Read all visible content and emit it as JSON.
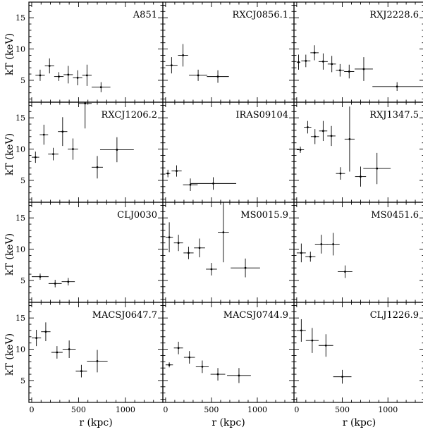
{
  "chart_data": {
    "type": "scatter",
    "layout": "4x3 grid of panels, shared axes",
    "xlabel": "r (kpc)",
    "ylabel": "kT (keV)",
    "xlim": [
      -30,
      1400
    ],
    "ylim": [
      1.5,
      17.5
    ],
    "xticks": [
      0,
      500,
      1000
    ],
    "yticks": [
      5,
      10,
      15
    ],
    "x_minor_step": 100,
    "y_minor_step": 1,
    "panels": [
      {
        "name": "A851",
        "points": [
          {
            "x": 90,
            "y": 5.8,
            "xerr": 50,
            "yerr": 0.9
          },
          {
            "x": 190,
            "y": 7.3,
            "xerr": 50,
            "yerr": 1.2
          },
          {
            "x": 290,
            "y": 5.6,
            "xerr": 50,
            "yerr": 0.7
          },
          {
            "x": 390,
            "y": 5.9,
            "xerr": 50,
            "yerr": 1.4
          },
          {
            "x": 490,
            "y": 5.4,
            "xerr": 50,
            "yerr": 1.2
          },
          {
            "x": 590,
            "y": 5.8,
            "xerr": 50,
            "yerr": 1.7
          },
          {
            "x": 740,
            "y": 3.9,
            "xerr": 100,
            "yerr": 0.8
          }
        ]
      },
      {
        "name": "RXCJ0856.1",
        "points": [
          {
            "x": 65,
            "y": 7.4,
            "xerr": 65,
            "yerr": 1.3
          },
          {
            "x": 190,
            "y": 9.0,
            "xerr": 55,
            "yerr": 1.8
          },
          {
            "x": 355,
            "y": 5.8,
            "xerr": 100,
            "yerr": 0.9
          },
          {
            "x": 570,
            "y": 5.6,
            "xerr": 120,
            "yerr": 1.0
          }
        ]
      },
      {
        "name": "RXJ2228.6",
        "points": [
          {
            "x": 20,
            "y": 7.9,
            "xerr": 20,
            "yerr": 1.2
          },
          {
            "x": 100,
            "y": 8.1,
            "xerr": 50,
            "yerr": 1.0
          },
          {
            "x": 195,
            "y": 9.4,
            "xerr": 45,
            "yerr": 1.2
          },
          {
            "x": 290,
            "y": 8.0,
            "xerr": 50,
            "yerr": 1.3
          },
          {
            "x": 385,
            "y": 7.6,
            "xerr": 45,
            "yerr": 1.3
          },
          {
            "x": 475,
            "y": 6.6,
            "xerr": 45,
            "yerr": 1.0
          },
          {
            "x": 575,
            "y": 6.4,
            "xerr": 55,
            "yerr": 1.1
          },
          {
            "x": 735,
            "y": 6.8,
            "xerr": 100,
            "yerr": 1.9
          },
          {
            "x": 1100,
            "y": 4.0,
            "xerr": 270,
            "yerr": 0.7
          }
        ]
      },
      {
        "name": "RXCJ1206.2",
        "points": [
          {
            "x": 40,
            "y": 8.7,
            "xerr": 40,
            "yerr": 0.9
          },
          {
            "x": 130,
            "y": 12.3,
            "xerr": 45,
            "yerr": 1.6
          },
          {
            "x": 230,
            "y": 9.2,
            "xerr": 55,
            "yerr": 1.0
          },
          {
            "x": 330,
            "y": 12.8,
            "xerr": 50,
            "yerr": 2.3
          },
          {
            "x": 440,
            "y": 10.0,
            "xerr": 55,
            "yerr": 1.7
          },
          {
            "x": 570,
            "y": 17.3,
            "xerr": 70,
            "yerr": 4.0
          },
          {
            "x": 700,
            "y": 7.1,
            "xerr": 60,
            "yerr": 1.8
          },
          {
            "x": 910,
            "y": 9.9,
            "xerr": 180,
            "yerr": 2.0
          }
        ]
      },
      {
        "name": "IRAS09104",
        "points": [
          {
            "x": 25,
            "y": 6.1,
            "xerr": 25,
            "yerr": 0.6
          },
          {
            "x": 120,
            "y": 6.5,
            "xerr": 55,
            "yerr": 0.9
          },
          {
            "x": 270,
            "y": 4.3,
            "xerr": 80,
            "yerr": 1.0
          },
          {
            "x": 520,
            "y": 4.5,
            "xerr": 250,
            "yerr": 1.0
          }
        ]
      },
      {
        "name": "RXJ1347.5",
        "points": [
          {
            "x": 40,
            "y": 9.9,
            "xerr": 40,
            "yerr": 0.5
          },
          {
            "x": 120,
            "y": 13.5,
            "xerr": 40,
            "yerr": 1.0
          },
          {
            "x": 200,
            "y": 12.0,
            "xerr": 45,
            "yerr": 1.2
          },
          {
            "x": 290,
            "y": 12.9,
            "xerr": 45,
            "yerr": 1.6
          },
          {
            "x": 380,
            "y": 12.1,
            "xerr": 45,
            "yerr": 1.6
          },
          {
            "x": 480,
            "y": 6.1,
            "xerr": 50,
            "yerr": 1.0
          },
          {
            "x": 580,
            "y": 11.6,
            "xerr": 55,
            "yerr": 5.2
          },
          {
            "x": 700,
            "y": 5.6,
            "xerr": 60,
            "yerr": 1.6
          },
          {
            "x": 880,
            "y": 6.9,
            "xerr": 150,
            "yerr": 2.5
          }
        ]
      },
      {
        "name": "CLJ0030",
        "points": [
          {
            "x": 90,
            "y": 5.6,
            "xerr": 90,
            "yerr": 0.5
          },
          {
            "x": 250,
            "y": 4.5,
            "xerr": 70,
            "yerr": 0.6
          },
          {
            "x": 390,
            "y": 4.8,
            "xerr": 70,
            "yerr": 0.6
          }
        ]
      },
      {
        "name": "MS0015.9",
        "points": [
          {
            "x": 40,
            "y": 11.9,
            "xerr": 40,
            "yerr": 2.4
          },
          {
            "x": 140,
            "y": 11.0,
            "xerr": 50,
            "yerr": 1.3
          },
          {
            "x": 250,
            "y": 9.4,
            "xerr": 55,
            "yerr": 1.0
          },
          {
            "x": 370,
            "y": 10.2,
            "xerr": 60,
            "yerr": 1.5
          },
          {
            "x": 500,
            "y": 6.8,
            "xerr": 60,
            "yerr": 1.0
          },
          {
            "x": 630,
            "y": 12.7,
            "xerr": 60,
            "yerr": 4.8
          },
          {
            "x": 870,
            "y": 7.0,
            "xerr": 160,
            "yerr": 1.5
          }
        ]
      },
      {
        "name": "MS0451.6",
        "points": [
          {
            "x": 50,
            "y": 9.4,
            "xerr": 50,
            "yerr": 1.5
          },
          {
            "x": 150,
            "y": 8.8,
            "xerr": 55,
            "yerr": 0.8
          },
          {
            "x": 270,
            "y": 10.8,
            "xerr": 70,
            "yerr": 1.5
          },
          {
            "x": 400,
            "y": 10.8,
            "xerr": 70,
            "yerr": 1.8
          },
          {
            "x": 530,
            "y": 6.4,
            "xerr": 80,
            "yerr": 1.0
          }
        ]
      },
      {
        "name": "MACSJ0647.7",
        "points": [
          {
            "x": 50,
            "y": 11.8,
            "xerr": 50,
            "yerr": 1.3
          },
          {
            "x": 150,
            "y": 12.8,
            "xerr": 50,
            "yerr": 1.5
          },
          {
            "x": 270,
            "y": 9.5,
            "xerr": 60,
            "yerr": 1.0
          },
          {
            "x": 400,
            "y": 10.0,
            "xerr": 70,
            "yerr": 1.4
          },
          {
            "x": 530,
            "y": 6.5,
            "xerr": 60,
            "yerr": 1.0
          },
          {
            "x": 700,
            "y": 8.1,
            "xerr": 110,
            "yerr": 1.8
          }
        ]
      },
      {
        "name": "MACSJ0744.9",
        "points": [
          {
            "x": 40,
            "y": 7.5,
            "xerr": 40,
            "yerr": 0.4
          },
          {
            "x": 140,
            "y": 10.2,
            "xerr": 50,
            "yerr": 1.0
          },
          {
            "x": 260,
            "y": 8.7,
            "xerr": 60,
            "yerr": 1.0
          },
          {
            "x": 400,
            "y": 7.2,
            "xerr": 70,
            "yerr": 1.0
          },
          {
            "x": 570,
            "y": 6.0,
            "xerr": 80,
            "yerr": 1.0
          },
          {
            "x": 800,
            "y": 5.8,
            "xerr": 130,
            "yerr": 1.2
          }
        ]
      },
      {
        "name": "CLJ1226.9",
        "points": [
          {
            "x": 50,
            "y": 13.0,
            "xerr": 50,
            "yerr": 1.8
          },
          {
            "x": 170,
            "y": 11.4,
            "xerr": 70,
            "yerr": 2.0
          },
          {
            "x": 320,
            "y": 10.6,
            "xerr": 80,
            "yerr": 1.8
          },
          {
            "x": 500,
            "y": 5.6,
            "xerr": 100,
            "yerr": 1.1
          }
        ]
      }
    ]
  }
}
